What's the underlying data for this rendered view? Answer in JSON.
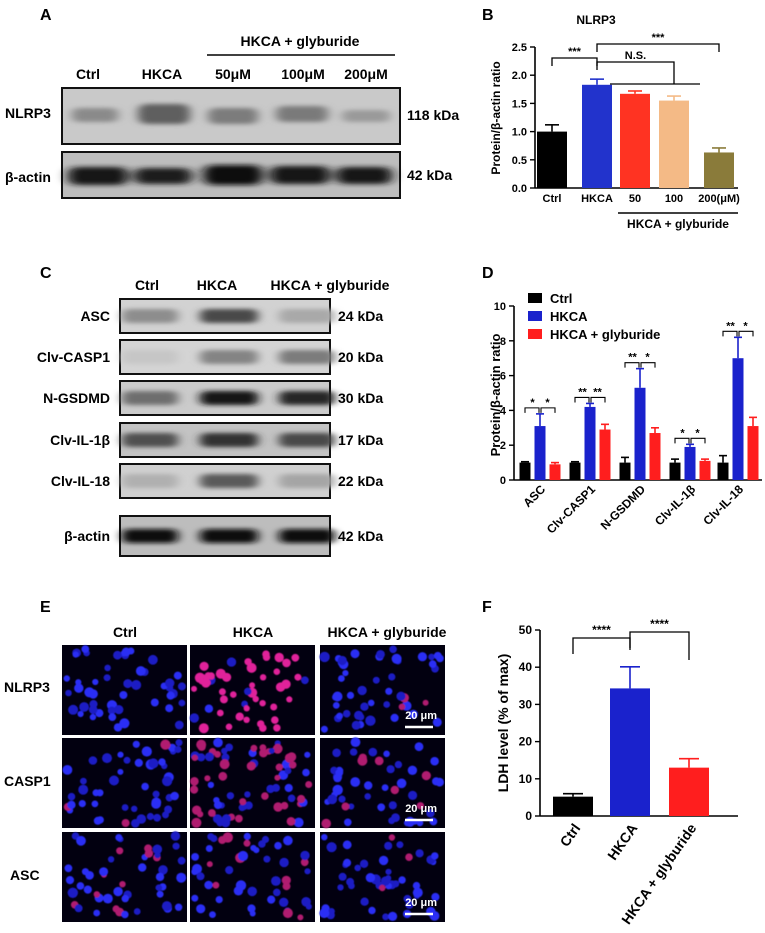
{
  "panels": {
    "A": {
      "letter": "A",
      "treatment_label": "HKCA + glyburide",
      "lanes": [
        "Ctrl",
        "HKCA",
        "50μM",
        "100μM",
        "200μM"
      ],
      "rows": [
        {
          "name": "NLRP3",
          "kda": "118 kDa"
        },
        {
          "name": "β-actin",
          "kda": "42 kDa"
        }
      ]
    },
    "B": {
      "letter": "B"
    },
    "C": {
      "letter": "C",
      "lanes": [
        "Ctrl",
        "HKCA",
        "HKCA + glyburide"
      ],
      "rows": [
        {
          "name": "ASC",
          "kda": "24 kDa"
        },
        {
          "name": "Clv-CASP1",
          "kda": "20 kDa"
        },
        {
          "name": "N-GSDMD",
          "kda": "30 kDa"
        },
        {
          "name": "Clv-IL-1β",
          "kda": "17 kDa"
        },
        {
          "name": "Clv-IL-18",
          "kda": "22 kDa"
        },
        {
          "name": "β-actin",
          "kda": "42 kDa"
        }
      ]
    },
    "D": {
      "letter": "D"
    },
    "E": {
      "letter": "E",
      "columns": [
        "Ctrl",
        "HKCA",
        "HKCA + glyburide"
      ],
      "rows": [
        "NLRP3",
        "CASP1",
        "ASC"
      ],
      "scale_bar": "20 μm"
    },
    "F": {
      "letter": "F"
    }
  },
  "chart_data": [
    {
      "id": "B",
      "type": "bar",
      "title": "NLRP3",
      "ylabel": "Protein/β-actin ratio",
      "ylim": [
        0,
        2.5
      ],
      "yticks": [
        "0.0",
        "0.5",
        "1.0",
        "1.5",
        "2.0",
        "2.5"
      ],
      "categories": [
        "Ctrl",
        "HKCA",
        "50",
        "100",
        "200(μM)"
      ],
      "values": [
        1.0,
        1.83,
        1.67,
        1.55,
        0.63
      ],
      "errors": [
        0.12,
        0.1,
        0.05,
        0.08,
        0.08
      ],
      "colors": [
        "#000000",
        "#2233cc",
        "#ff3322",
        "#f4ba86",
        "#8a7b3a"
      ],
      "group_label": "HKCA + glyburide",
      "significance": [
        {
          "from": 0,
          "to": 1,
          "label": "***"
        },
        {
          "from": 1,
          "to": 3,
          "label": "N.S."
        },
        {
          "from": 1,
          "to": 4,
          "label": "***"
        }
      ]
    },
    {
      "id": "D",
      "type": "bar",
      "ylabel": "Protein/β-actin ratio",
      "ylim": [
        0,
        10
      ],
      "yticks": [
        "0",
        "2",
        "4",
        "6",
        "8",
        "10"
      ],
      "categories": [
        "ASC",
        "Clv-CASP1",
        "N-GSDMD",
        "Clv-IL-1β",
        "Clv-IL-18"
      ],
      "legend_position": "top-left",
      "series": [
        {
          "name": "Ctrl",
          "color": "#000000",
          "values": [
            1.0,
            1.0,
            1.0,
            1.0,
            1.0
          ],
          "errors": [
            0.05,
            0.05,
            0.3,
            0.2,
            0.4
          ]
        },
        {
          "name": "HKCA",
          "color": "#1a22cc",
          "values": [
            3.1,
            4.2,
            5.3,
            1.9,
            7.0
          ],
          "errors": [
            0.7,
            0.2,
            1.1,
            0.15,
            1.2
          ]
        },
        {
          "name": "HKCA + glyburide",
          "color": "#ff1e1e",
          "values": [
            0.9,
            2.9,
            2.7,
            1.1,
            3.1
          ],
          "errors": [
            0.1,
            0.3,
            0.3,
            0.1,
            0.5
          ]
        }
      ],
      "significance": [
        {
          "left": "*",
          "right": "*"
        },
        {
          "left": "**",
          "right": "**"
        },
        {
          "left": "**",
          "right": "*"
        },
        {
          "left": "*",
          "right": "*"
        },
        {
          "left": "**",
          "right": "*"
        }
      ]
    },
    {
      "id": "F",
      "type": "bar",
      "ylabel": "LDH level (% of max)",
      "ylim": [
        0,
        50
      ],
      "yticks": [
        "0",
        "10",
        "20",
        "30",
        "40",
        "50"
      ],
      "categories": [
        "Ctrl",
        "HKCA",
        "HKCA + glyburide"
      ],
      "values": [
        5.2,
        34.3,
        13.0
      ],
      "errors": [
        0.8,
        5.8,
        2.4
      ],
      "colors": [
        "#000000",
        "#1a22cc",
        "#ff1e1e"
      ],
      "significance": [
        {
          "from": 0,
          "to": 1,
          "label": "****"
        },
        {
          "from": 1,
          "to": 2,
          "label": "****"
        }
      ]
    }
  ]
}
